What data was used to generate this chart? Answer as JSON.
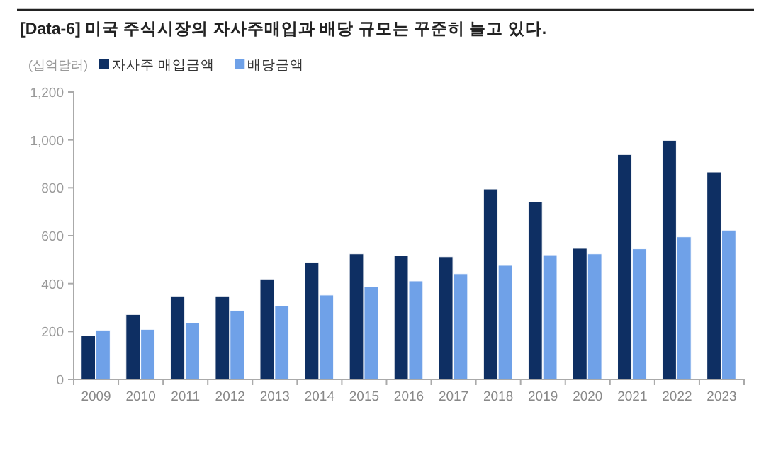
{
  "chart_data": {
    "type": "bar",
    "title": "[Data-6] 미국 주식시장의 자사주매입과 배당 규모는 꾸준히 늘고 있다.",
    "ylabel": "(십억달러)",
    "categories": [
      "2009",
      "2010",
      "2011",
      "2012",
      "2013",
      "2014",
      "2015",
      "2016",
      "2017",
      "2018",
      "2019",
      "2020",
      "2021",
      "2022",
      "2023"
    ],
    "series": [
      {
        "name": "자사주 매입금액",
        "color": "#0e2f63",
        "values": [
          182,
          271,
          348,
          348,
          419,
          488,
          524,
          516,
          512,
          795,
          741,
          547,
          939,
          998,
          866
        ]
      },
      {
        "name": "배당금액",
        "color": "#6fa1e8",
        "values": [
          206,
          209,
          235,
          287,
          306,
          352,
          387,
          411,
          441,
          476,
          520,
          524,
          545,
          595,
          623
        ]
      }
    ],
    "ylim": [
      0,
      1200
    ],
    "yticks": [
      0,
      200,
      400,
      600,
      800,
      {
        "value": 1000,
        "label": "1,000"
      },
      {
        "value": 1200,
        "label": "1,200"
      }
    ],
    "grid": false,
    "legend": "top left"
  }
}
